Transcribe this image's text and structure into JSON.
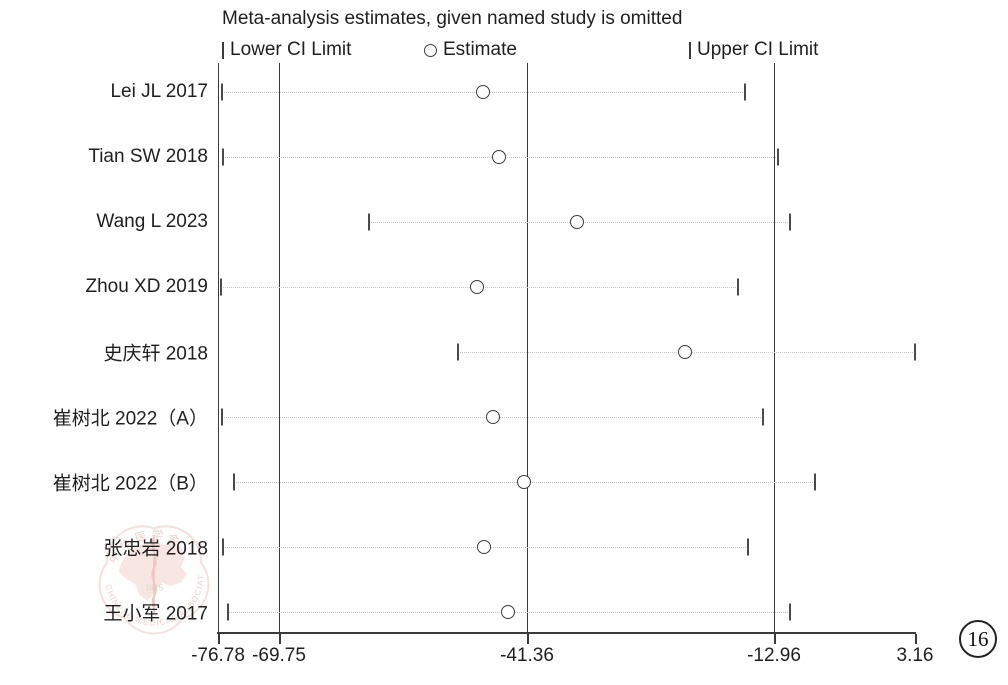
{
  "title": "Meta-analysis estimates, given named study is omitted",
  "legend": {
    "lower_label": "Lower CI Limit",
    "estimate_label": "Estimate",
    "upper_label": "Upper CI Limit"
  },
  "figure_number": "16",
  "watermark": {
    "organization_en": "CHINESE MEDICAL ASSOCIATION",
    "organization_zh": "中华医学会",
    "year": "1915"
  },
  "colors": {
    "line": "#3a3a3a",
    "dotted": "#c6c6c6",
    "watermark_pink": "#e9b9b0",
    "background": "#ffffff"
  },
  "chart_data": {
    "type": "scatter",
    "variant": "leave-one-out sensitivity (metaninf) plot",
    "title": "Meta-analysis estimates, given named study is omitted",
    "xlim": [
      -76.78,
      3.16
    ],
    "x_ticks": [
      -76.78,
      -69.75,
      -41.36,
      -12.96,
      3.16
    ],
    "x_tick_labels": [
      "-76.78",
      "-69.75",
      "-41.36",
      "-12.96",
      "3.16"
    ],
    "reference_lines": [
      -69.75,
      -41.36,
      -12.96
    ],
    "grid": false,
    "legend_position": "top",
    "studies": [
      {
        "label": "Lei JL 2017",
        "lower": -76.3,
        "estimate": -46.4,
        "upper": -16.3
      },
      {
        "label": "Tian SW 2018",
        "lower": -76.2,
        "estimate": -44.6,
        "upper": -12.6
      },
      {
        "label": "Wang L 2023",
        "lower": -59.5,
        "estimate": -35.6,
        "upper": -11.2
      },
      {
        "label": "Zhou XD 2019",
        "lower": -76.4,
        "estimate": -47.1,
        "upper": -17.1
      },
      {
        "label": "史庆轩 2018",
        "lower": -49.3,
        "estimate": -23.2,
        "upper": 3.16
      },
      {
        "label": "崔树北 2022（A）",
        "lower": -76.3,
        "estimate": -45.2,
        "upper": -14.3
      },
      {
        "label": "崔树北 2022（B）",
        "lower": -74.9,
        "estimate": -41.7,
        "upper": -8.3
      },
      {
        "label": "张忠岩 2018",
        "lower": -76.2,
        "estimate": -46.3,
        "upper": -16.0
      },
      {
        "label": "王小军 2017",
        "lower": -75.6,
        "estimate": -43.5,
        "upper": -11.2
      }
    ]
  }
}
